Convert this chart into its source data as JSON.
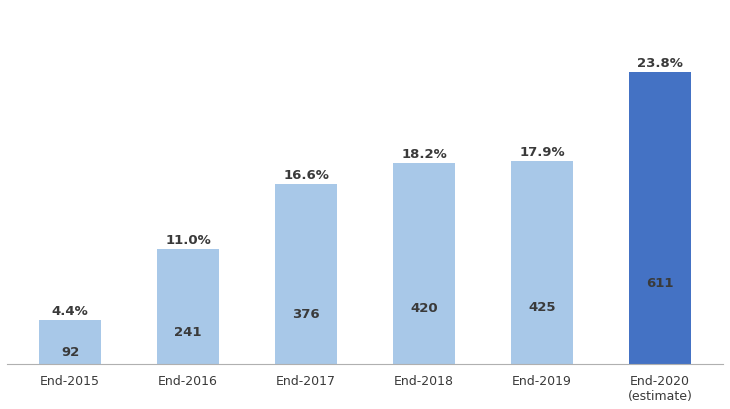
{
  "categories": [
    "End-2015",
    "End-2016",
    "End-2017",
    "End-2018",
    "End-2019",
    "End-2020\n(estimate)"
  ],
  "values": [
    92,
    241,
    376,
    420,
    425,
    611
  ],
  "percentages": [
    "4.4%",
    "11.0%",
    "16.6%",
    "18.2%",
    "17.9%",
    "23.8%"
  ],
  "bar_colors": [
    "#a8c8e8",
    "#a8c8e8",
    "#a8c8e8",
    "#a8c8e8",
    "#a8c8e8",
    "#4472c4"
  ],
  "legend_bar_color": "#4472c4",
  "legend_pct_color": "#c0504d",
  "ylim": [
    0,
    750
  ],
  "annotation_color": "#3a3a3a",
  "pct_color": "#3a3a3a",
  "background_color": "#ffffff",
  "bar_width": 0.52,
  "fontsize_label": 9.5,
  "fontsize_pct": 9.5,
  "fontsize_legend": 8.5
}
